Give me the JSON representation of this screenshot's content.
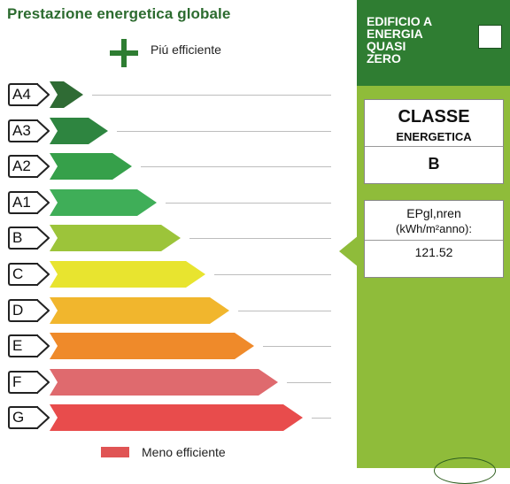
{
  "header": {
    "title": "Prestazione energetica globale",
    "more_efficient": "Piú efficiente",
    "less_efficient": "Meno efficiente"
  },
  "classes": [
    {
      "label": "A4",
      "color": "#2f6b34"
    },
    {
      "label": "A3",
      "color": "#2e8540"
    },
    {
      "label": "A2",
      "color": "#36a04a"
    },
    {
      "label": "A1",
      "color": "#3fae58"
    },
    {
      "label": "B",
      "color": "#9cc43a"
    },
    {
      "label": "C",
      "color": "#e8e42f"
    },
    {
      "label": "D",
      "color": "#f1b62d"
    },
    {
      "label": "E",
      "color": "#ef8a2a"
    },
    {
      "label": "F",
      "color": "#df6a6e"
    },
    {
      "label": "G",
      "color": "#e84c4c"
    }
  ],
  "nzeb": {
    "lines": [
      "EDIFICIO A",
      "ENERGIA",
      "QUASI",
      "ZERO"
    ]
  },
  "class_panel": {
    "heading": "CLASSE",
    "subheading": "ENERGETICA",
    "value": "B"
  },
  "ep_panel": {
    "label_line1": "EPgl,nren",
    "label_line2": "(kWh/m²anno):",
    "value": "121.52"
  }
}
